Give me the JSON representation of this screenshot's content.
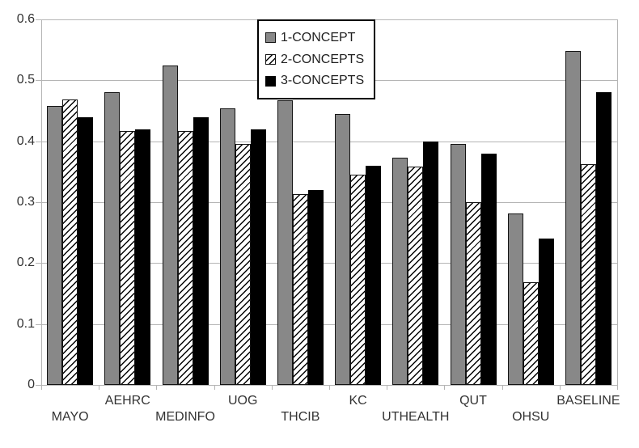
{
  "chart_data": {
    "type": "bar",
    "title": "",
    "xlabel": "",
    "ylabel": "",
    "categories": [
      "MAYO",
      "AEHRC",
      "MEDINFO",
      "UOG",
      "THCIB",
      "KC",
      "UTHEALTH",
      "QUT",
      "OHSU",
      "BASELINE"
    ],
    "series": [
      {
        "name": "1-CONCEPT",
        "style": "solid-gray",
        "values": [
          0.458,
          0.48,
          0.525,
          0.454,
          0.467,
          0.445,
          0.373,
          0.395,
          0.281,
          0.548
        ]
      },
      {
        "name": "2-CONCEPTS",
        "style": "diagonal-hatch",
        "values": [
          0.468,
          0.417,
          0.417,
          0.395,
          0.313,
          0.345,
          0.359,
          0.3,
          0.169,
          0.363
        ]
      },
      {
        "name": "3-CONCEPTS",
        "style": "solid-black",
        "values": [
          0.44,
          0.42,
          0.44,
          0.42,
          0.32,
          0.36,
          0.4,
          0.38,
          0.24,
          0.48
        ]
      }
    ],
    "ylim": [
      0,
      0.6
    ],
    "yticks": [
      0,
      0.1,
      0.2,
      0.3,
      0.4,
      0.5,
      0.6
    ],
    "ytick_labels": [
      "0",
      "0.1",
      "0.2",
      "0.3",
      "0.4",
      "0.5",
      "0.6"
    ],
    "grid": true,
    "legend_position": "top-center",
    "category_label_rows": [
      "lower",
      "upper",
      "lower",
      "upper",
      "lower",
      "upper",
      "lower",
      "upper",
      "lower",
      "upper"
    ]
  },
  "colors": {
    "bar_gray": "#888888",
    "bar_black": "#000000",
    "bar_border": "#141414",
    "hatch_bg": "#ffffff",
    "hatch_line": "#000000",
    "grid_line": "#b5b5b5",
    "text": "#333333",
    "background": "#ffffff",
    "legend_border": "#000000"
  }
}
